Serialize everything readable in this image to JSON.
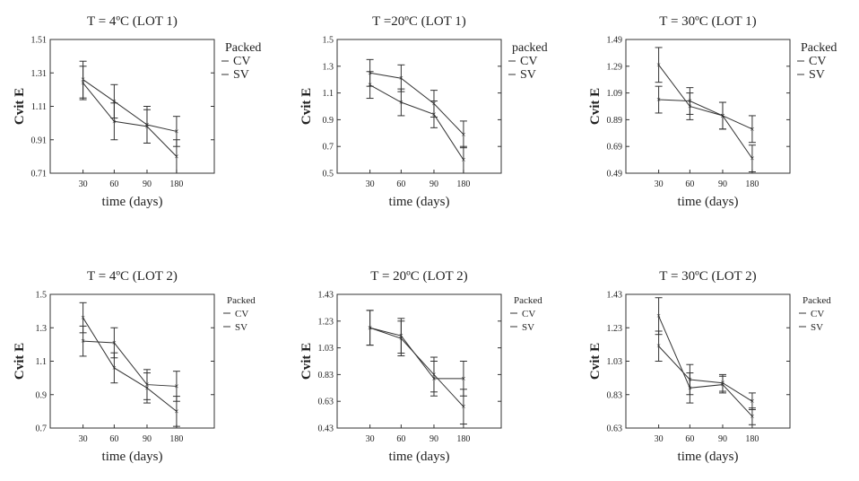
{
  "chart_data": [
    {
      "type": "line",
      "title": "T = 4ºC (LOT 1)",
      "xlabel": "time (days)",
      "ylabel": "Cvit E",
      "categories": [
        "30",
        "60",
        "90",
        "180"
      ],
      "yticks": [
        "0.71",
        "0.91",
        "1.11",
        "1.31",
        "1.51"
      ],
      "ylim": [
        0.71,
        1.51
      ],
      "legend_title": "Packed",
      "legend_size": "large",
      "series": [
        {
          "name": "CV",
          "values": [
            1.27,
            1.14,
            1.0,
            0.96
          ],
          "err": [
            0.11,
            0.1,
            0.11,
            0.09
          ]
        },
        {
          "name": "SV",
          "values": [
            1.25,
            1.02,
            0.99,
            0.81
          ],
          "err": [
            0.1,
            0.11,
            0.1,
            0.1
          ]
        }
      ]
    },
    {
      "type": "line",
      "title": "T =20ºC (LOT 1)",
      "xlabel": "time (days)",
      "ylabel": "Cvit E",
      "categories": [
        "30",
        "60",
        "90",
        "180"
      ],
      "yticks": [
        "0.5",
        "0.7",
        "0.9",
        "1.1",
        "1.3",
        "1.5"
      ],
      "ylim": [
        0.5,
        1.5
      ],
      "legend_title": "packed",
      "legend_size": "large",
      "series": [
        {
          "name": "CV",
          "values": [
            1.25,
            1.21,
            1.02,
            0.79
          ],
          "err": [
            0.1,
            0.1,
            0.1,
            0.1
          ]
        },
        {
          "name": "SV",
          "values": [
            1.16,
            1.03,
            0.94,
            0.6
          ],
          "err": [
            0.1,
            0.1,
            0.1,
            0.1
          ]
        }
      ]
    },
    {
      "type": "line",
      "title": "T = 30ºC (LOT 1)",
      "xlabel": "time (days)",
      "ylabel": "Cvit E",
      "categories": [
        "30",
        "60",
        "90",
        "180"
      ],
      "yticks": [
        "0.49",
        "0.69",
        "0.89",
        "1.09",
        "1.29",
        "1.49"
      ],
      "ylim": [
        0.49,
        1.49
      ],
      "legend_title": "Packed",
      "legend_size": "large",
      "series": [
        {
          "name": "CV",
          "values": [
            1.04,
            1.03,
            0.92,
            0.82
          ],
          "err": [
            0.1,
            0.1,
            0.1,
            0.1
          ]
        },
        {
          "name": "SV",
          "values": [
            1.3,
            0.99,
            0.92,
            0.6
          ],
          "err": [
            0.13,
            0.1,
            0.1,
            0.1
          ]
        }
      ]
    },
    {
      "type": "line",
      "title": "T = 4ºC (LOT 2)",
      "xlabel": "time (days)",
      "ylabel": "Cvit E",
      "categories": [
        "30",
        "60",
        "90",
        "180"
      ],
      "yticks": [
        "0.7",
        "0.9",
        "1.1",
        "1.3",
        "1.5"
      ],
      "ylim": [
        0.7,
        1.5
      ],
      "legend_title": "Packed",
      "legend_size": "small",
      "series": [
        {
          "name": "CV",
          "values": [
            1.22,
            1.21,
            0.96,
            0.95
          ],
          "err": [
            0.09,
            0.09,
            0.09,
            0.09
          ]
        },
        {
          "name": "SV",
          "values": [
            1.36,
            1.06,
            0.94,
            0.8
          ],
          "err": [
            0.09,
            0.09,
            0.09,
            0.09
          ]
        }
      ]
    },
    {
      "type": "line",
      "title": "T = 20ºC (LOT 2)",
      "xlabel": "time (days)",
      "ylabel": "Cvit E",
      "categories": [
        "30",
        "60",
        "90",
        "180"
      ],
      "yticks": [
        "0.43",
        "0.63",
        "0.83",
        "1.03",
        "1.23",
        "1.43"
      ],
      "ylim": [
        0.43,
        1.43
      ],
      "legend_title": "Packed",
      "legend_size": "small",
      "series": [
        {
          "name": "CV",
          "values": [
            1.18,
            1.12,
            0.8,
            0.8
          ],
          "err": [
            0.13,
            0.13,
            0.13,
            0.13
          ]
        },
        {
          "name": "SV",
          "values": [
            1.18,
            1.1,
            0.83,
            0.59
          ],
          "err": [
            0.13,
            0.13,
            0.13,
            0.13
          ]
        }
      ]
    },
    {
      "type": "line",
      "title": "T = 30ºC (LOT 2)",
      "xlabel": "time (days)",
      "ylabel": "Cvit E",
      "categories": [
        "30",
        "60",
        "90",
        "180"
      ],
      "yticks": [
        "0.63",
        "0.83",
        "1.03",
        "1.23",
        "1.43"
      ],
      "ylim": [
        0.63,
        1.43
      ],
      "legend_title": "Packed",
      "legend_size": "small",
      "series": [
        {
          "name": "CV",
          "values": [
            1.12,
            0.92,
            0.9,
            0.79
          ],
          "err": [
            0.09,
            0.09,
            0.05,
            0.05
          ]
        },
        {
          "name": "SV",
          "values": [
            1.3,
            0.87,
            0.89,
            0.7
          ],
          "err": [
            0.11,
            0.09,
            0.05,
            0.05
          ]
        }
      ]
    }
  ]
}
